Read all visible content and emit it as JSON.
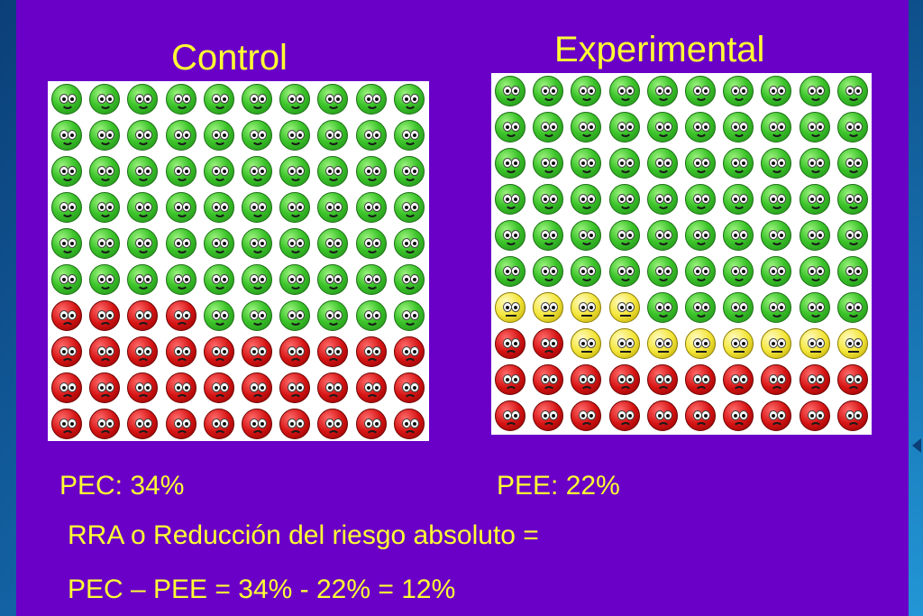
{
  "colors": {
    "background": "#6a00c8",
    "text": "#ffff33",
    "healthy": "#3cc42a",
    "event": "#d61414",
    "prevented": "#f4e63a"
  },
  "control": {
    "title": "Control",
    "rows": [
      [
        "g",
        "g",
        "g",
        "g",
        "g",
        "g",
        "g",
        "g",
        "g",
        "g"
      ],
      [
        "g",
        "g",
        "g",
        "g",
        "g",
        "g",
        "g",
        "g",
        "g",
        "g"
      ],
      [
        "g",
        "g",
        "g",
        "g",
        "g",
        "g",
        "g",
        "g",
        "g",
        "g"
      ],
      [
        "g",
        "g",
        "g",
        "g",
        "g",
        "g",
        "g",
        "g",
        "g",
        "g"
      ],
      [
        "g",
        "g",
        "g",
        "g",
        "g",
        "g",
        "g",
        "g",
        "g",
        "g"
      ],
      [
        "g",
        "g",
        "g",
        "g",
        "g",
        "g",
        "g",
        "g",
        "g",
        "g"
      ],
      [
        "r",
        "r",
        "r",
        "r",
        "g",
        "g",
        "g",
        "g",
        "g",
        "g"
      ],
      [
        "r",
        "r",
        "r",
        "r",
        "r",
        "r",
        "r",
        "r",
        "r",
        "r"
      ],
      [
        "r",
        "r",
        "r",
        "r",
        "r",
        "r",
        "r",
        "r",
        "r",
        "r"
      ],
      [
        "r",
        "r",
        "r",
        "r",
        "r",
        "r",
        "r",
        "r",
        "r",
        "r"
      ]
    ]
  },
  "experimental": {
    "title": "Experimental",
    "rows": [
      [
        "g",
        "g",
        "g",
        "g",
        "g",
        "g",
        "g",
        "g",
        "g",
        "g"
      ],
      [
        "g",
        "g",
        "g",
        "g",
        "g",
        "g",
        "g",
        "g",
        "g",
        "g"
      ],
      [
        "g",
        "g",
        "g",
        "g",
        "g",
        "g",
        "g",
        "g",
        "g",
        "g"
      ],
      [
        "g",
        "g",
        "g",
        "g",
        "g",
        "g",
        "g",
        "g",
        "g",
        "g"
      ],
      [
        "g",
        "g",
        "g",
        "g",
        "g",
        "g",
        "g",
        "g",
        "g",
        "g"
      ],
      [
        "g",
        "g",
        "g",
        "g",
        "g",
        "g",
        "g",
        "g",
        "g",
        "g"
      ],
      [
        "y",
        "y",
        "y",
        "y",
        "g",
        "g",
        "g",
        "g",
        "g",
        "g"
      ],
      [
        "r",
        "r",
        "y",
        "y",
        "y",
        "y",
        "y",
        "y",
        "y",
        "y"
      ],
      [
        "r",
        "r",
        "r",
        "r",
        "r",
        "r",
        "r",
        "r",
        "r",
        "r"
      ],
      [
        "r",
        "r",
        "r",
        "r",
        "r",
        "r",
        "r",
        "r",
        "r",
        "r"
      ]
    ]
  },
  "text": {
    "pec": "PEC: 34%",
    "pee": "PEE: 22%",
    "rra": "RRA o Reducción del riesgo absoluto =",
    "formula": "PEC – PEE = 34% - 22% = 12%"
  }
}
